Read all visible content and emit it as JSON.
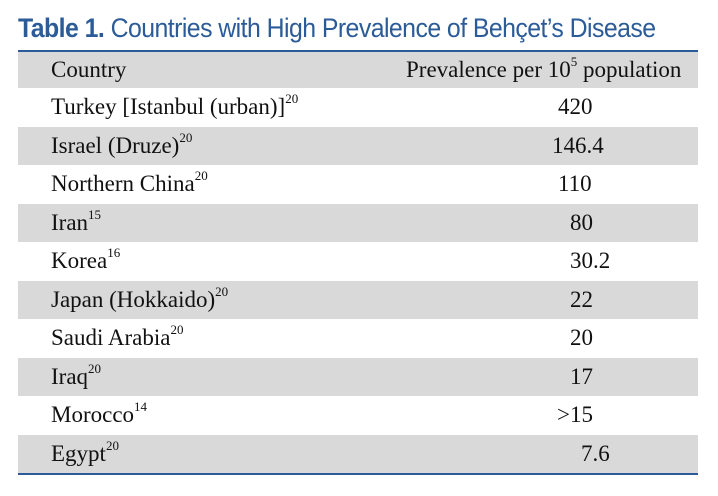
{
  "title": {
    "label": "Table 1.",
    "text": "Countries with High Prevalence of Behçet’s Disease"
  },
  "columns": {
    "country": "Country",
    "prevalence_pre": "Prevalence per 10",
    "prevalence_exp": "5",
    "prevalence_post": " population"
  },
  "rows": [
    {
      "country": "Turkey [Istanbul (urban)]",
      "ref": "20",
      "value": "420"
    },
    {
      "country": "Israel (Druze)",
      "ref": "20",
      "value": "146.4"
    },
    {
      "country": "Northern China",
      "ref": "20",
      "value": "110"
    },
    {
      "country": "Iran",
      "ref": "15",
      "value": "80"
    },
    {
      "country": "Korea",
      "ref": "16",
      "value": "30.2"
    },
    {
      "country": "Japan (Hokkaido)",
      "ref": "20",
      "value": "22"
    },
    {
      "country": "Saudi Arabia",
      "ref": "20",
      "value": "20"
    },
    {
      "country": "Iraq",
      "ref": "20",
      "value": "17"
    },
    {
      "country": "Morocco",
      "ref": "14",
      "value": ">15"
    },
    {
      "country": "Egypt",
      "ref": "20",
      "value": "7.6"
    }
  ]
}
